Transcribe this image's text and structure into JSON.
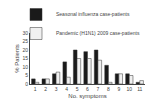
{
  "chart_data": {
    "type": "bar",
    "categories": [
      1,
      2,
      3,
      4,
      5,
      6,
      7,
      8,
      9,
      10,
      11
    ],
    "series": [
      {
        "name": "Seasonal influenza case-patients",
        "color": "#1a1a1a",
        "values": [
          3,
          3,
          6,
          13,
          20,
          19,
          20,
          11,
          6,
          6,
          1
        ]
      },
      {
        "name": "Pandemic (H1N1) 2009 case-patients",
        "color": "#f0f0f0",
        "values": [
          1,
          3,
          7,
          4,
          15,
          15,
          14,
          1,
          6,
          5,
          2
        ]
      }
    ],
    "xlabel": "No. symptoms",
    "ylabel": "% Patients",
    "ylim": [
      0,
      30
    ],
    "yticks": [
      0,
      5,
      10,
      15,
      20,
      25,
      30
    ],
    "grid": false,
    "legend": "upper right"
  }
}
